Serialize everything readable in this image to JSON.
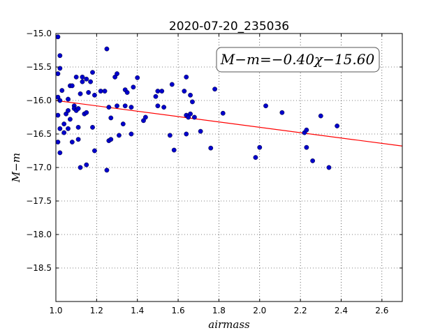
{
  "chart_data": {
    "type": "scatter",
    "title": "2020-07-20_235036",
    "xlabel": "airmass",
    "ylabel": "M−m",
    "xlim": [
      1.0,
      2.7
    ],
    "ylim": [
      -15.0,
      -19.0
    ],
    "y_inverted": true,
    "grid": true,
    "x_ticks": [
      "1.0",
      "1.2",
      "1.4",
      "1.6",
      "1.8",
      "2.0",
      "2.2",
      "2.4",
      "2.6"
    ],
    "y_ticks": [
      "−15.0",
      "−15.5",
      "−16.0",
      "−16.5",
      "−17.0",
      "−17.5",
      "−18.0",
      "−18.5"
    ],
    "annotation": "M−m=−0.40χ−15.60",
    "fit": {
      "slope": -0.4,
      "intercept": -15.6,
      "color": "#ff0000"
    },
    "point_color": "#0000cc",
    "points": [
      [
        1.01,
        -15.05
      ],
      [
        1.02,
        -15.33
      ],
      [
        1.02,
        -15.52
      ],
      [
        1.01,
        -15.6
      ],
      [
        1.01,
        -15.95
      ],
      [
        1.02,
        -16.0
      ],
      [
        1.01,
        -16.22
      ],
      [
        1.02,
        -16.42
      ],
      [
        1.01,
        -16.62
      ],
      [
        1.02,
        -16.78
      ],
      [
        1.03,
        -15.85
      ],
      [
        1.04,
        -16.35
      ],
      [
        1.04,
        -16.48
      ],
      [
        1.05,
        -16.2
      ],
      [
        1.06,
        -16.15
      ],
      [
        1.06,
        -15.98
      ],
      [
        1.06,
        -16.42
      ],
      [
        1.07,
        -16.28
      ],
      [
        1.07,
        -15.78
      ],
      [
        1.08,
        -15.78
      ],
      [
        1.08,
        -16.62
      ],
      [
        1.09,
        -16.08
      ],
      [
        1.09,
        -16.12
      ],
      [
        1.1,
        -16.15
      ],
      [
        1.1,
        -15.65
      ],
      [
        1.11,
        -16.12
      ],
      [
        1.11,
        -16.58
      ],
      [
        1.11,
        -16.4
      ],
      [
        1.12,
        -15.9
      ],
      [
        1.12,
        -17.0
      ],
      [
        1.13,
        -15.65
      ],
      [
        1.13,
        -15.72
      ],
      [
        1.14,
        -16.2
      ],
      [
        1.15,
        -16.96
      ],
      [
        1.15,
        -16.18
      ],
      [
        1.15,
        -15.68
      ],
      [
        1.16,
        -15.88
      ],
      [
        1.17,
        -15.72
      ],
      [
        1.18,
        -16.4
      ],
      [
        1.18,
        -15.58
      ],
      [
        1.19,
        -15.92
      ],
      [
        1.19,
        -16.75
      ],
      [
        1.22,
        -15.86
      ],
      [
        1.24,
        -15.86
      ],
      [
        1.25,
        -15.23
      ],
      [
        1.25,
        -17.04
      ],
      [
        1.26,
        -16.6
      ],
      [
        1.26,
        -16.1
      ],
      [
        1.27,
        -16.26
      ],
      [
        1.27,
        -16.58
      ],
      [
        1.29,
        -15.65
      ],
      [
        1.3,
        -15.6
      ],
      [
        1.3,
        -16.08
      ],
      [
        1.31,
        -16.52
      ],
      [
        1.33,
        -16.35
      ],
      [
        1.34,
        -15.84
      ],
      [
        1.34,
        -16.08
      ],
      [
        1.35,
        -15.88
      ],
      [
        1.37,
        -16.5
      ],
      [
        1.37,
        -16.1
      ],
      [
        1.38,
        -15.8
      ],
      [
        1.4,
        -15.66
      ],
      [
        1.43,
        -16.3
      ],
      [
        1.44,
        -16.25
      ],
      [
        1.49,
        -15.94
      ],
      [
        1.5,
        -15.86
      ],
      [
        1.5,
        -16.08
      ],
      [
        1.52,
        -15.86
      ],
      [
        1.53,
        -16.1
      ],
      [
        1.56,
        -16.52
      ],
      [
        1.57,
        -15.76
      ],
      [
        1.58,
        -16.74
      ],
      [
        1.63,
        -15.86
      ],
      [
        1.64,
        -16.22
      ],
      [
        1.64,
        -16.5
      ],
      [
        1.64,
        -15.65
      ],
      [
        1.65,
        -16.25
      ],
      [
        1.66,
        -15.92
      ],
      [
        1.66,
        -16.2
      ],
      [
        1.67,
        -16.02
      ],
      [
        1.68,
        -16.25
      ],
      [
        1.71,
        -16.46
      ],
      [
        1.76,
        -16.71
      ],
      [
        1.78,
        -15.83
      ],
      [
        1.82,
        -16.19
      ],
      [
        1.98,
        -16.85
      ],
      [
        2.0,
        -16.7
      ],
      [
        2.03,
        -16.08
      ],
      [
        2.11,
        -16.18
      ],
      [
        2.22,
        -16.48
      ],
      [
        2.23,
        -16.44
      ],
      [
        2.23,
        -16.7
      ],
      [
        2.26,
        -16.9
      ],
      [
        2.3,
        -16.23
      ],
      [
        2.34,
        -17.0
      ],
      [
        2.38,
        -16.38
      ]
    ]
  }
}
